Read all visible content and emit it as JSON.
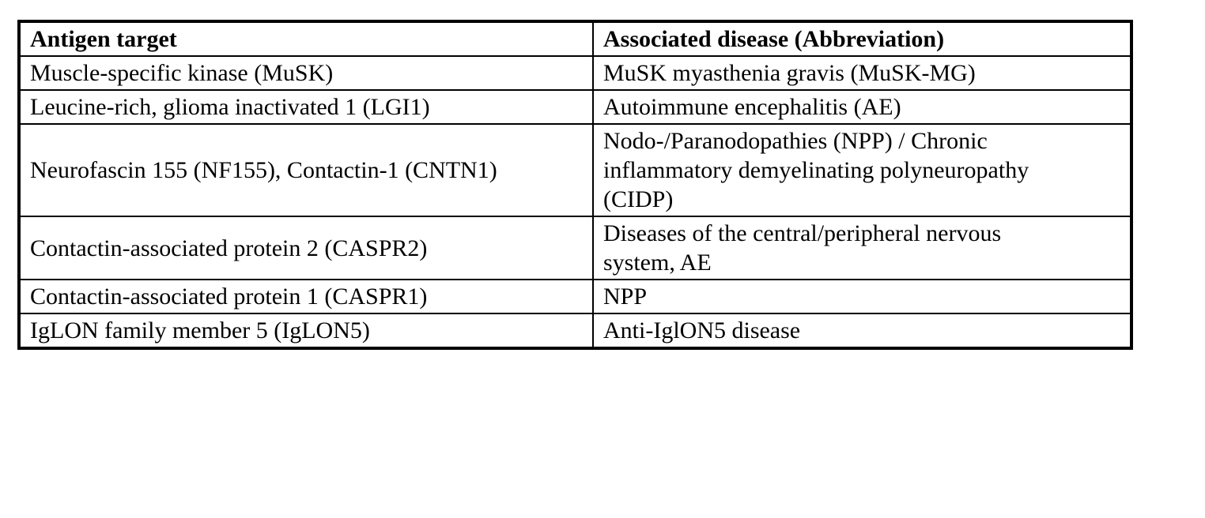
{
  "page": {
    "background_color": "#ffffff",
    "text_color": "#000000",
    "border_color": "#000000"
  },
  "table": {
    "header": {
      "antigen": "Antigen target",
      "disease": "Associated disease (Abbreviation)"
    },
    "rows": [
      {
        "antigen": [
          "Muscle-specific kinase (MuSK)"
        ],
        "disease": [
          "MuSK myasthenia gravis (MuSK-MG)"
        ]
      },
      {
        "antigen": [
          "Leucine-rich, glioma inactivated 1 (LGI1)"
        ],
        "disease": [
          "Autoimmune encephalitis (AE)"
        ]
      },
      {
        "antigen": [
          "Neurofascin 155 (NF155), Contactin-1 (CNTN1)"
        ],
        "disease": [
          "Nodo-/Paranodopathies (NPP) / Chronic",
          "inflammatory demyelinating polyneuropathy",
          "(CIDP)"
        ]
      },
      {
        "antigen": [
          "Contactin-associated protein 2 (CASPR2)"
        ],
        "disease": [
          "Diseases of the central/peripheral nervous",
          "system, AE"
        ]
      },
      {
        "antigen": [
          "Contactin-associated protein 1 (CASPR1)"
        ],
        "disease": [
          "NPP"
        ]
      },
      {
        "antigen": [
          "IgLON family member 5 (IgLON5)"
        ],
        "disease": [
          "Anti-IglON5 disease"
        ]
      }
    ]
  }
}
